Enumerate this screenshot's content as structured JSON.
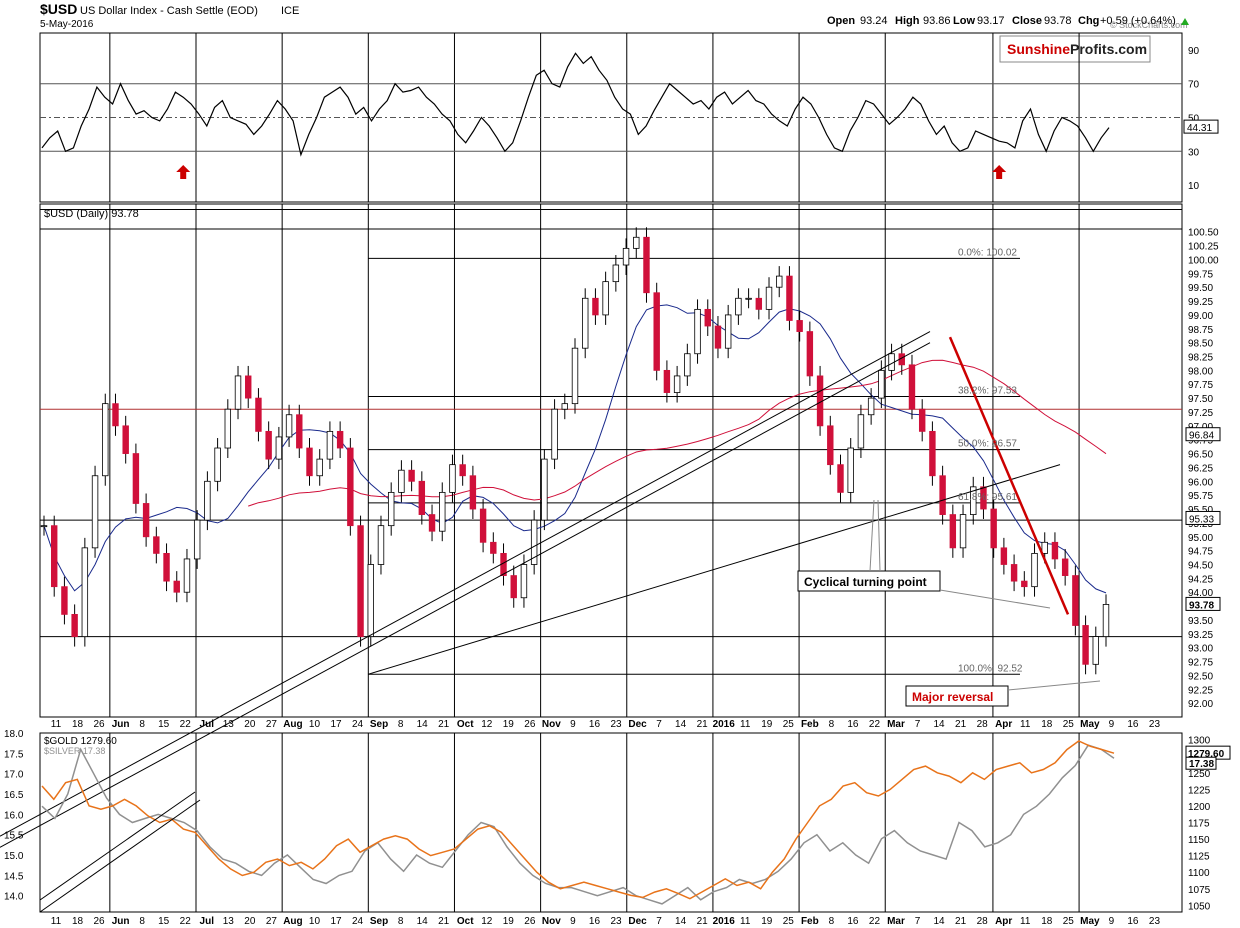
{
  "header": {
    "symbol": "$USD",
    "name": "US Dollar Index - Cash Settle (EOD)",
    "exchange": "ICE",
    "date": "5-May-2016",
    "open_label": "Open",
    "open": "93.24",
    "high_label": "High",
    "high": "93.86",
    "low_label": "Low",
    "low": "93.17",
    "close_label": "Close",
    "close": "93.78",
    "chg_label": "Chg",
    "chg": "+0.59 (+0.64%)",
    "copyright": "© StockCharts.com"
  },
  "logo": {
    "part1": "Sunshine",
    "part2": "Profits.com"
  },
  "colors": {
    "up_candle": "#ffffff",
    "down_candle": "#d0103a",
    "ma50": "#1a2a8c",
    "ma200": "#d0103a",
    "gold": "#e8731a",
    "silver": "#909090",
    "arrow": "#cc0000",
    "annotation_red": "#cc0000"
  },
  "chart_data": [
    {
      "type": "line",
      "panel": "rsi",
      "title": "",
      "ylim": [
        0,
        100
      ],
      "yticks": [
        "90",
        "70",
        "50",
        "30",
        "10"
      ],
      "current_value": "44.31",
      "reference_lines": [
        70,
        50,
        30
      ],
      "values": [
        32,
        38,
        42,
        30,
        32,
        45,
        55,
        68,
        62,
        58,
        70,
        60,
        52,
        54,
        50,
        48,
        55,
        65,
        62,
        58,
        52,
        45,
        56,
        60,
        50,
        48,
        46,
        40,
        45,
        52,
        60,
        55,
        48,
        28,
        40,
        50,
        62,
        65,
        68,
        62,
        52,
        56,
        48,
        55,
        60,
        70,
        65,
        66,
        68,
        62,
        58,
        52,
        48,
        40,
        35,
        42,
        50,
        45,
        38,
        30,
        35,
        48,
        62,
        75,
        78,
        70,
        68,
        80,
        88,
        82,
        86,
        78,
        72,
        62,
        55,
        52,
        40,
        45,
        54,
        62,
        70,
        66,
        62,
        58,
        60,
        55,
        62,
        65,
        58,
        62,
        66,
        60,
        58,
        52,
        48,
        45,
        55,
        62,
        58,
        50,
        40,
        32,
        30,
        42,
        50,
        60,
        58,
        52,
        46,
        50,
        55,
        62,
        58,
        48,
        40,
        45,
        35,
        30,
        32,
        42,
        40,
        38,
        36,
        35,
        32,
        48,
        55,
        40,
        30,
        42,
        50,
        48,
        45,
        38,
        30,
        38,
        44
      ],
      "arrows_at": [
        18,
        122,
        198,
        222,
        238,
        251
      ]
    },
    {
      "type": "candlestick",
      "panel": "price",
      "title": "$USD (Daily) 93.78",
      "ylim": [
        91.75,
        101.0
      ],
      "yticks": [
        "100.50",
        "100.25",
        "100.00",
        "99.75",
        "99.50",
        "99.25",
        "99.00",
        "98.75",
        "98.50",
        "98.25",
        "98.00",
        "97.75",
        "97.50",
        "97.25",
        "97.00",
        "96.75",
        "96.50",
        "96.25",
        "96.00",
        "95.75",
        "95.50",
        "95.25",
        "95.00",
        "94.75",
        "94.50",
        "94.25",
        "94.00",
        "93.75",
        "93.50",
        "93.25",
        "93.00",
        "92.75",
        "92.50",
        "92.25",
        "92.00"
      ],
      "x_labels": [
        "11",
        "18",
        "26",
        "Jun",
        "8",
        "15",
        "22",
        "Jul",
        "13",
        "20",
        "27",
        "Aug",
        "10",
        "17",
        "24",
        "Sep",
        "8",
        "14",
        "21",
        "Oct",
        "12",
        "19",
        "26",
        "Nov",
        "9",
        "16",
        "23",
        "Dec",
        "7",
        "14",
        "21",
        "2016",
        "11",
        "19",
        "25",
        "Feb",
        "8",
        "16",
        "22",
        "Mar",
        "7",
        "14",
        "21",
        "28",
        "Apr",
        "11",
        "18",
        "25",
        "May",
        "9",
        "16",
        "23"
      ],
      "closes": [
        95.2,
        94.1,
        93.6,
        93.2,
        94.8,
        96.1,
        97.4,
        97.0,
        96.5,
        95.6,
        95.0,
        94.7,
        94.2,
        94.0,
        94.6,
        95.3,
        96.0,
        96.6,
        97.3,
        97.9,
        97.5,
        96.9,
        96.4,
        96.8,
        97.2,
        96.6,
        96.1,
        96.4,
        96.9,
        96.6,
        95.2,
        93.2,
        94.5,
        95.2,
        95.8,
        96.2,
        96.0,
        95.4,
        95.1,
        95.8,
        96.3,
        96.1,
        95.5,
        94.9,
        94.7,
        94.3,
        93.9,
        94.5,
        95.3,
        96.4,
        97.3,
        97.4,
        98.4,
        99.3,
        99.0,
        99.6,
        99.9,
        100.2,
        100.4,
        99.4,
        98.0,
        97.6,
        97.9,
        98.3,
        99.1,
        98.8,
        98.4,
        99.0,
        99.3,
        99.3,
        99.1,
        99.5,
        99.7,
        98.9,
        98.7,
        97.9,
        97.0,
        96.3,
        95.8,
        96.6,
        97.2,
        97.5,
        98.0,
        98.3,
        98.1,
        97.3,
        96.9,
        96.1,
        95.4,
        94.8,
        95.4,
        95.9,
        95.5,
        94.8,
        94.5,
        94.2,
        94.1,
        94.7,
        94.9,
        94.6,
        94.3,
        93.4,
        92.7,
        93.2,
        93.78
      ],
      "series": [
        {
          "name": "",
          "kind": "ma50"
        },
        {
          "name": "",
          "kind": "ma200"
        }
      ],
      "current_values": {
        "close": "93.78",
        "ma200": "96.84",
        "ma50": "95.33"
      },
      "fib_labels": [
        {
          "text": "0.0%: 100.02",
          "y": 100.02
        },
        {
          "text": "38.2%: 97.53",
          "y": 97.53
        },
        {
          "text": "50.0%: 96.57",
          "y": 96.57
        },
        {
          "text": "61.8%: 95.61",
          "y": 95.61
        },
        {
          "text": "100.0%: 92.52",
          "y": 92.52
        }
      ],
      "annotations": [
        {
          "text": "Cyclical turning point"
        },
        {
          "text": "Major reversal"
        }
      ]
    },
    {
      "type": "line",
      "panel": "gold-silver",
      "series": [
        {
          "name": "$GOLD 1279.60",
          "axis": "right",
          "ylim": [
            1040,
            1310
          ],
          "values": [
            1230,
            1210,
            1235,
            1240,
            1200,
            1195,
            1200,
            1210,
            1200,
            1185,
            1175,
            1180,
            1165,
            1160,
            1140,
            1120,
            1105,
            1095,
            1100,
            1115,
            1120,
            1110,
            1115,
            1105,
            1120,
            1140,
            1150,
            1130,
            1140,
            1150,
            1155,
            1150,
            1135,
            1125,
            1130,
            1135,
            1150,
            1165,
            1170,
            1160,
            1140,
            1120,
            1100,
            1085,
            1075,
            1080,
            1085,
            1080,
            1075,
            1070,
            1065,
            1062,
            1070,
            1075,
            1068,
            1060,
            1070,
            1080,
            1090,
            1080,
            1085,
            1075,
            1100,
            1120,
            1150,
            1175,
            1200,
            1210,
            1230,
            1235,
            1220,
            1215,
            1225,
            1240,
            1255,
            1260,
            1250,
            1245,
            1235,
            1250,
            1240,
            1255,
            1260,
            1265,
            1250,
            1255,
            1265,
            1285,
            1298,
            1290,
            1285,
            1279.6
          ]
        },
        {
          "name": "$SILVER 17.38",
          "axis": "left",
          "ylim": [
            13.6,
            18.0
          ],
          "values": [
            16.2,
            15.9,
            16.5,
            17.6,
            17.0,
            16.4,
            16.0,
            15.8,
            15.9,
            16.0,
            15.9,
            15.8,
            15.6,
            15.2,
            14.9,
            14.8,
            14.6,
            14.5,
            14.8,
            15.0,
            14.7,
            14.4,
            14.3,
            14.5,
            14.6,
            15.1,
            15.3,
            14.9,
            14.6,
            15.0,
            14.8,
            14.7,
            15.1,
            15.5,
            15.8,
            15.7,
            15.2,
            14.8,
            14.5,
            14.3,
            14.2,
            14.2,
            14.1,
            14.0,
            14.1,
            14.2,
            14.0,
            13.9,
            13.8,
            14.0,
            14.2,
            13.9,
            14.1,
            14.2,
            14.4,
            14.3,
            14.4,
            14.6,
            14.9,
            15.3,
            15.5,
            15.1,
            15.3,
            15.0,
            14.8,
            15.4,
            15.6,
            15.3,
            15.1,
            15.0,
            14.9,
            15.8,
            15.6,
            15.2,
            15.3,
            15.5,
            16.0,
            16.2,
            16.5,
            16.9,
            17.2,
            17.7,
            17.6,
            17.38
          ]
        }
      ],
      "left_ticks": [
        "18.0",
        "17.5",
        "17.0",
        "16.5",
        "16.0",
        "15.5",
        "15.0",
        "14.5",
        "14.0"
      ],
      "right_ticks": [
        "1300",
        "1275",
        "1250",
        "1225",
        "1200",
        "1175",
        "1150",
        "1125",
        "1100",
        "1075",
        "1050"
      ],
      "current_values": {
        "gold": "1279.60",
        "silver": "17.38"
      }
    }
  ]
}
